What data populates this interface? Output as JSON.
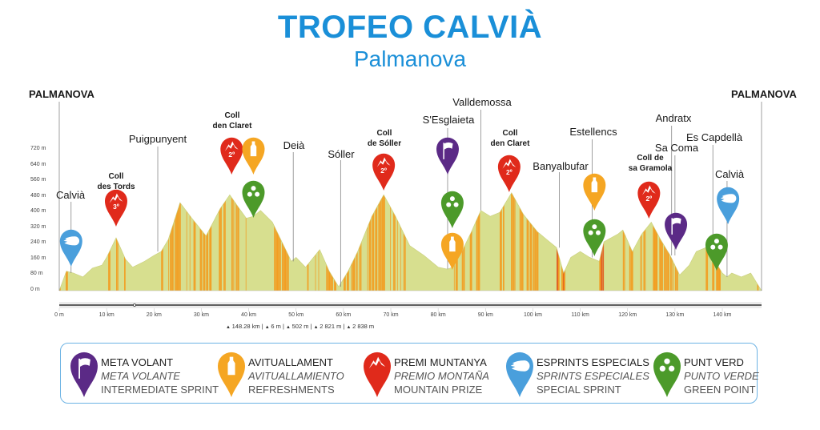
{
  "title": "TROFEO CALVIÀ",
  "subtitle": "Palmanova",
  "colors": {
    "title": "#1a8fd8",
    "meta_volant": "#5b2a86",
    "refreshment": "#f5a623",
    "mountain": "#e02a1b",
    "sprint": "#4a9fdc",
    "green_point": "#4c9a2a",
    "profile_fill": "#d7df8f",
    "stripe_orange": "#f39c1f",
    "stripe_red": "#e2571b"
  },
  "chart_data": {
    "type": "area",
    "xlabel": "",
    "ylabel": "",
    "xlim": [
      0,
      148.28
    ],
    "ylim": [
      0,
      720
    ],
    "y_ticks": [
      "0 m",
      "80 m",
      "160 m",
      "240 m",
      "320 m",
      "400 m",
      "480 m",
      "560 m",
      "640 m",
      "720 m"
    ],
    "y_tick_values": [
      0,
      80,
      160,
      240,
      320,
      400,
      480,
      560,
      640,
      720
    ],
    "x_ticks": [
      "0 m",
      "10 km",
      "20 km",
      "30 km",
      "40 km",
      "50 km",
      "60 km",
      "70 km",
      "80 km",
      "90 km",
      "100 km",
      "110 km",
      "120 km",
      "130 km",
      "140 km"
    ],
    "x_tick_values": [
      0,
      10,
      20,
      30,
      40,
      50,
      60,
      70,
      80,
      90,
      100,
      110,
      120,
      130,
      140
    ],
    "profile": [
      [
        0,
        0
      ],
      [
        1.5,
        100
      ],
      [
        3,
        90
      ],
      [
        5,
        70
      ],
      [
        7,
        115
      ],
      [
        9,
        130
      ],
      [
        10,
        170
      ],
      [
        12,
        270
      ],
      [
        14,
        160
      ],
      [
        15.5,
        120
      ],
      [
        18,
        150
      ],
      [
        20,
        180
      ],
      [
        21.5,
        200
      ],
      [
        23,
        260
      ],
      [
        25.5,
        450
      ],
      [
        28,
        370
      ],
      [
        31,
        280
      ],
      [
        34,
        420
      ],
      [
        36,
        490
      ],
      [
        38,
        420
      ],
      [
        39.5,
        370
      ],
      [
        41,
        380
      ],
      [
        42.5,
        410
      ],
      [
        45,
        350
      ],
      [
        47,
        250
      ],
      [
        49,
        150
      ],
      [
        50,
        170
      ],
      [
        52,
        120
      ],
      [
        55,
        210
      ],
      [
        57,
        100
      ],
      [
        59,
        20
      ],
      [
        61,
        100
      ],
      [
        63,
        200
      ],
      [
        66,
        380
      ],
      [
        68.5,
        490
      ],
      [
        71,
        380
      ],
      [
        74,
        230
      ],
      [
        77,
        180
      ],
      [
        80,
        120
      ],
      [
        82,
        110
      ],
      [
        83,
        120
      ],
      [
        85,
        200
      ],
      [
        87,
        300
      ],
      [
        89,
        410
      ],
      [
        91,
        380
      ],
      [
        93,
        400
      ],
      [
        95.5,
        500
      ],
      [
        98,
        390
      ],
      [
        101,
        300
      ],
      [
        103,
        260
      ],
      [
        105,
        220
      ],
      [
        106.5,
        90
      ],
      [
        108,
        170
      ],
      [
        110,
        200
      ],
      [
        112,
        170
      ],
      [
        114,
        150
      ],
      [
        115,
        250
      ],
      [
        118,
        290
      ],
      [
        119,
        310
      ],
      [
        121,
        200
      ],
      [
        123,
        290
      ],
      [
        125,
        350
      ],
      [
        127,
        260
      ],
      [
        129,
        180
      ],
      [
        131,
        80
      ],
      [
        133,
        130
      ],
      [
        134.5,
        200
      ],
      [
        136.5,
        220
      ],
      [
        138,
        170
      ],
      [
        140,
        90
      ],
      [
        141,
        70
      ],
      [
        142,
        90
      ],
      [
        144,
        70
      ],
      [
        146,
        90
      ],
      [
        148.28,
        0
      ]
    ]
  },
  "places": [
    {
      "name": "PALMANOVA",
      "km": 0
    },
    {
      "name": "Calvià",
      "km": 2.5
    },
    {
      "name": "Coll",
      "name2": "des Tords",
      "km": 12
    },
    {
      "name": "Puigpunyent",
      "km": 20.8
    },
    {
      "name": "Coll",
      "name2": "den Claret",
      "km": 36.4
    },
    {
      "name": "Deià",
      "km": 49.4
    },
    {
      "name": "Sóller",
      "km": 59.4
    },
    {
      "name": "Coll",
      "name2": "de Sóller",
      "km": 68.5
    },
    {
      "name": "S'Esglaieta",
      "km": 82
    },
    {
      "name": "Valldemossa",
      "km": 89
    },
    {
      "name": "Coll",
      "name2": "den Claret",
      "km": 95
    },
    {
      "name": "Banyalbufar",
      "km": 105.6
    },
    {
      "name": "Estellencs",
      "km": 112.5
    },
    {
      "name": "Coll de",
      "name2": "sa Gramola",
      "km": 124.5
    },
    {
      "name": "Andratx",
      "km": 129.3
    },
    {
      "name": "Sa Coma",
      "km": 130
    },
    {
      "name": "Es Capdellà",
      "km": 138
    },
    {
      "name": "Calvià",
      "km": 141
    },
    {
      "name": "PALMANOVA",
      "km": 148.28
    }
  ],
  "markers": [
    {
      "type": "sprint",
      "km": 2.5
    },
    {
      "type": "mountain",
      "category": "3º",
      "km": 12
    },
    {
      "type": "mountain",
      "category": "2º",
      "km": 36.4
    },
    {
      "type": "refreshment",
      "km": 41
    },
    {
      "type": "green_point",
      "km": 41
    },
    {
      "type": "mountain",
      "category": "2º",
      "km": 68.5
    },
    {
      "type": "meta_volant",
      "km": 82
    },
    {
      "type": "green_point",
      "km": 83
    },
    {
      "type": "refreshment",
      "km": 83
    },
    {
      "type": "mountain",
      "category": "2º",
      "km": 95
    },
    {
      "type": "refreshment",
      "km": 113
    },
    {
      "type": "green_point",
      "km": 113
    },
    {
      "type": "mountain",
      "category": "2º",
      "km": 124.5
    },
    {
      "type": "meta_volant",
      "km": 130.2
    },
    {
      "type": "green_point",
      "km": 138.8
    },
    {
      "type": "sprint",
      "km": 141.2
    }
  ],
  "stats": [
    "148.28 km",
    "6 m",
    "502 m",
    "2 821 m",
    "2 838 m"
  ],
  "legend": [
    {
      "type": "meta_volant",
      "l1": "META VOLANT",
      "l2": "META VOLANTE",
      "l3": "INTERMEDIATE SPRINT"
    },
    {
      "type": "refreshment",
      "l1": "AVITUALLAMENT",
      "l2": "AVITUALLAMIENTO",
      "l3": "REFRESHMENTS"
    },
    {
      "type": "mountain",
      "l1": "PREMI MUNTANYA",
      "l2": "PREMIO MONTAÑA",
      "l3": "MOUNTAIN PRIZE"
    },
    {
      "type": "sprint",
      "l1": "ESPRINTS ESPECIALS",
      "l2": "SPRINTS ESPECIALES",
      "l3": "SPECIAL SPRINT"
    },
    {
      "type": "green_point",
      "l1": "PUNT VERD",
      "l2": "PUNTO VERDE",
      "l3": "GREEN POINT"
    }
  ]
}
